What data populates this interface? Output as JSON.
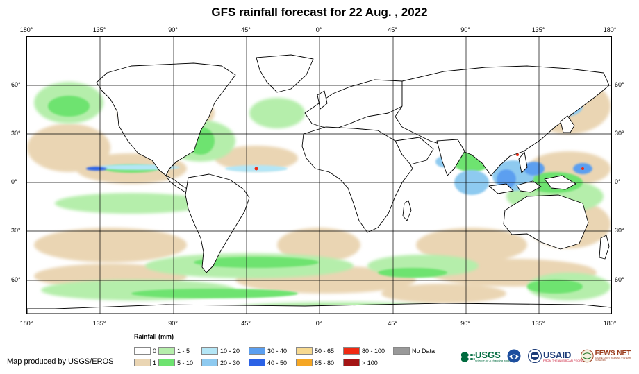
{
  "title": "GFS rainfall forecast for 22 Aug. , 2022",
  "axes": {
    "top_ticks": [
      "180°",
      "135°",
      "90°",
      "45°",
      "0°",
      "45°",
      "90°",
      "135°",
      "180°"
    ],
    "bottom_ticks": [
      "180°",
      "135°",
      "90°",
      "45°",
      "0°",
      "45°",
      "90°",
      "135°",
      "180°"
    ],
    "left_ticks": [
      "60°",
      "30°",
      "0°",
      "30°",
      "60°"
    ],
    "right_ticks": [
      "60°",
      "30°",
      "0°",
      "30°",
      "60°"
    ]
  },
  "legend": {
    "title": "Rainfall (mm)",
    "items": [
      {
        "label": "0",
        "color": "#ffffff"
      },
      {
        "label": "1",
        "color": "#ead5b3"
      },
      {
        "label": "1 - 5",
        "color": "#b5eeab"
      },
      {
        "label": "5 - 10",
        "color": "#6ee370"
      },
      {
        "label": "10 - 20",
        "color": "#b4e6f6"
      },
      {
        "label": "20 - 30",
        "color": "#8ecaf0"
      },
      {
        "label": "30 - 40",
        "color": "#5b9ff0"
      },
      {
        "label": "40 - 50",
        "color": "#2b62e6"
      },
      {
        "label": "50 - 65",
        "color": "#f7d98f"
      },
      {
        "label": "65 - 80",
        "color": "#f5a623"
      },
      {
        "label": "80 - 100",
        "color": "#f02a12"
      },
      {
        "label": "> 100",
        "color": "#a41515"
      },
      {
        "label": "No Data",
        "color": "#999999"
      }
    ]
  },
  "credit": "Map produced by USGS/EROS",
  "logos": {
    "usgs": "USGS",
    "usgs_tagline": "science for a changing world",
    "usaid": "USAID",
    "usaid_tagline": "FROM THE AMERICAN PEOPLE",
    "fewsnet": "FEWS NET",
    "fewsnet_tagline": "FAMINE EARLY WARNING SYSTEMS NETWORK"
  }
}
